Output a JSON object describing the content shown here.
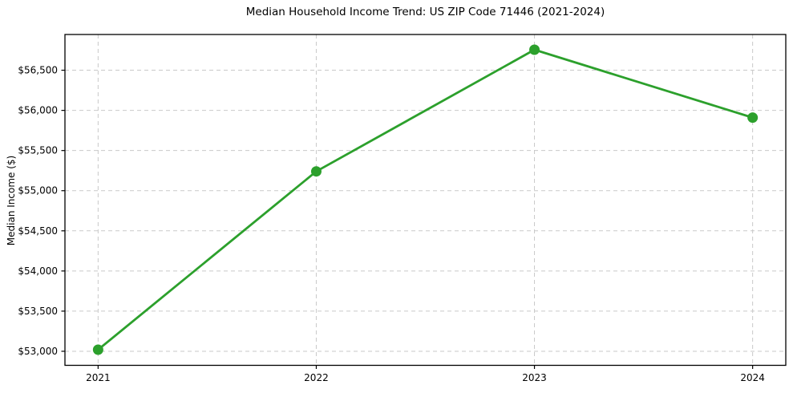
{
  "chart_data": {
    "type": "line",
    "title": "Median Household Income Trend: US ZIP Code 71446 (2021-2024)",
    "xlabel": "",
    "ylabel": "Median Income ($)",
    "categories": [
      "2021",
      "2022",
      "2023",
      "2024"
    ],
    "series": [
      {
        "name": "Median household income",
        "values": [
          53020,
          55240,
          56755,
          55910
        ]
      }
    ],
    "yticks": [
      53000,
      53500,
      54000,
      54500,
      55000,
      55500,
      56000,
      56500
    ],
    "ytick_labels": [
      "$53,000",
      "$53,500",
      "$54,000",
      "$54,500",
      "$55,000",
      "$55,500",
      "$56,000",
      "$56,500"
    ],
    "ylim": [
      52825,
      56945
    ],
    "grid": true,
    "grid_style": "dashed",
    "legend": false,
    "line_color": "#2ca02c",
    "marker_color": "#2ca02c",
    "grid_color": "#c9c9c9",
    "spine_color": "#000000"
  }
}
